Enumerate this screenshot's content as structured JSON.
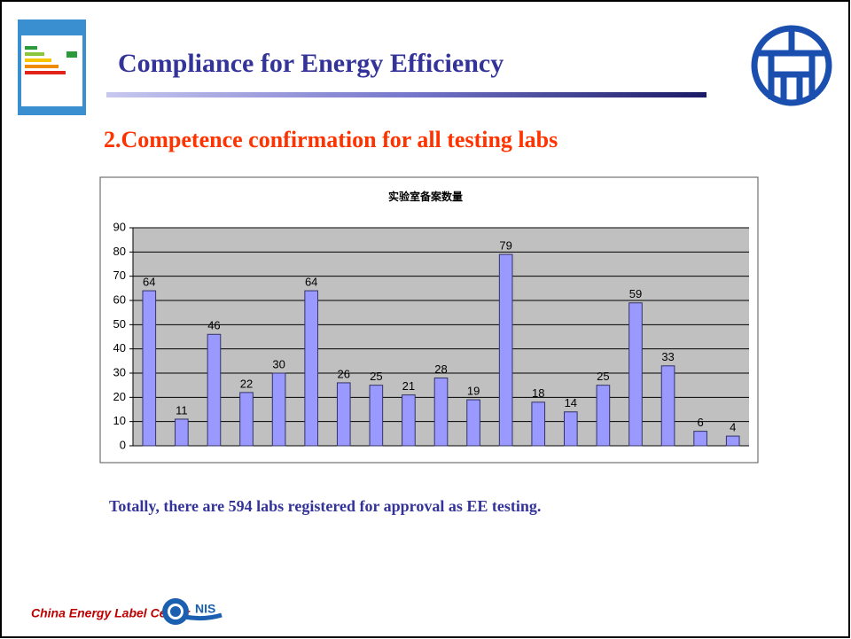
{
  "slide": {
    "title": "Compliance for Energy Efficiency",
    "subtitle": "2.Competence confirmation for all testing labs",
    "note": "Totally, there are 594 labs registered for approval as EE testing.",
    "footer": "China Energy Label Center,"
  },
  "chart_data": {
    "type": "bar",
    "title": "实验室备案数量",
    "categories": [
      null,
      null,
      null,
      null,
      null,
      null,
      null,
      null,
      null,
      null,
      null,
      null,
      null,
      null,
      null,
      null,
      null,
      null,
      null
    ],
    "values": [
      64,
      11,
      46,
      22,
      30,
      64,
      26,
      25,
      21,
      28,
      19,
      79,
      18,
      14,
      25,
      59,
      33,
      6,
      4
    ],
    "color": "#9999ff",
    "ylim": [
      0,
      90
    ],
    "yticks": [
      0,
      10,
      20,
      30,
      40,
      50,
      60,
      70,
      80,
      90
    ],
    "grid": true
  }
}
